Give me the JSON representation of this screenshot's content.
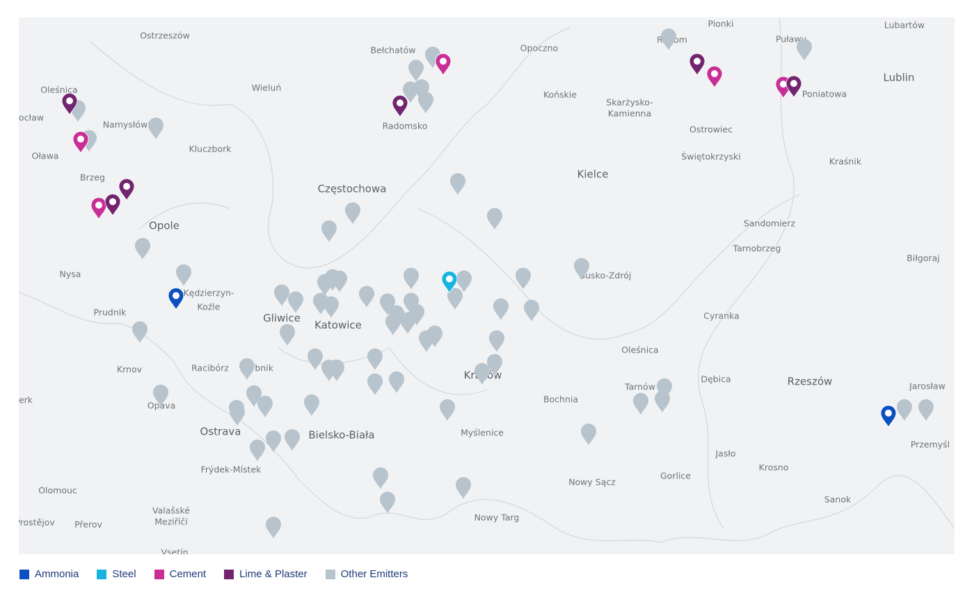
{
  "map": {
    "place_labels": [
      "Ostrzeszów",
      "Pionki",
      "Lubartów",
      "Bełchatów",
      "Opoczno",
      "Radom",
      "Puławy",
      "Wieluń",
      "Końskie",
      "Skarżysko-",
      "Kamienna",
      "Lublin",
      "Oleśnica",
      "Poniatowa",
      "ocław",
      "Namysłów",
      "Radomsko",
      "Ostrowiec",
      "Świętokrzyski",
      "Kluczbork",
      "Oława",
      "Kraśnik",
      "Brzeg",
      "Kielce",
      "Częstochowa",
      "Opole",
      "Sandomierz",
      "Tarnobrzeg",
      "Biłgoraj",
      "Nysa",
      "Busko-Zdrój",
      "Kędzierzyn-",
      "Koźle",
      "Prudnik",
      "Gliwice",
      "Katowice",
      "Cyranka",
      "Oleśnica",
      "Krnov",
      "Racibórz",
      "Rybnik",
      "Kraków",
      "Dębica",
      "Rzeszów",
      "Jarosław",
      "Tarnów",
      "Opava",
      "erk",
      "Bochnia",
      "Ostrava",
      "Bielsko-Biała",
      "Myślenice",
      "Przemyśl",
      "Jasło",
      "Frýdek-Místek",
      "Krosno",
      "Gorlice",
      "Nowy Sącz",
      "Olomouc",
      "Sanok",
      "Valašské",
      "Meziříčí",
      "Prostějov",
      "Přerov",
      "Nowy Targ",
      "Vsetín"
    ]
  },
  "legend": [
    {
      "name": "Ammonia",
      "color": "#0b4fc1"
    },
    {
      "name": "Steel",
      "color": "#16b4df"
    },
    {
      "name": "Cement",
      "color": "#c92e97"
    },
    {
      "name": "Lime & Plaster",
      "color": "#72256f"
    },
    {
      "name": "Other Emitters",
      "color": "#b7c3cd"
    }
  ]
}
